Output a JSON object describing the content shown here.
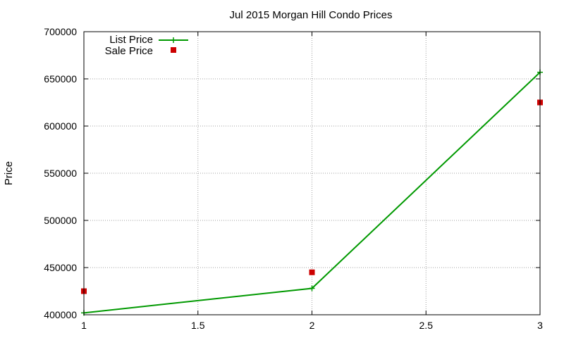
{
  "chart_data": {
    "type": "line",
    "title": "Jul 2015 Morgan Hill Condo Prices",
    "xlabel": "",
    "ylabel": "Price",
    "xlim": [
      1,
      3
    ],
    "ylim": [
      400000,
      700000
    ],
    "x_ticks": [
      "1",
      "1.5",
      "2",
      "2.5",
      "3"
    ],
    "x_tick_values": [
      1,
      1.5,
      2,
      2.5,
      3
    ],
    "y_ticks": [
      "400000",
      "450000",
      "500000",
      "550000",
      "600000",
      "650000",
      "700000"
    ],
    "y_tick_values": [
      400000,
      450000,
      500000,
      550000,
      600000,
      650000,
      700000
    ],
    "grid": true,
    "legend_position": "top-left",
    "series": [
      {
        "name": "List Price",
        "style": "line+plus-marker",
        "color": "#009900",
        "points": [
          [
            1,
            402000
          ],
          [
            2,
            428000
          ],
          [
            3,
            657000
          ]
        ]
      },
      {
        "name": "Sale Price",
        "style": "square-marker",
        "color": "#cc0000",
        "points": [
          [
            1,
            425000
          ],
          [
            2,
            445000
          ],
          [
            3,
            625000
          ]
        ]
      }
    ]
  }
}
